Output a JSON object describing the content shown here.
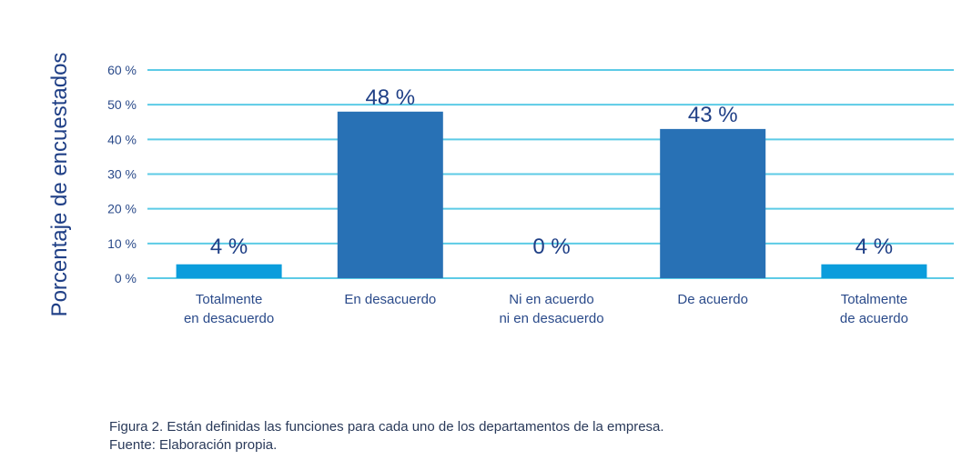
{
  "chart_data": {
    "type": "bar",
    "ylabel": "Porcentaje de encuestados",
    "xlabel": "",
    "ylim": [
      0,
      60
    ],
    "yticks": [
      0,
      10,
      20,
      30,
      40,
      50,
      60
    ],
    "ytick_labels": [
      "0 %",
      "10 %",
      "20 %",
      "30 %",
      "40 %",
      "50 %",
      "60 %"
    ],
    "grid": true,
    "categories": [
      [
        "Totalmente",
        "en desacuerdo"
      ],
      [
        "En desacuerdo"
      ],
      [
        "Ni en acuerdo",
        "ni en desacuerdo"
      ],
      [
        "De acuerdo"
      ],
      [
        "Totalmente",
        "de acuerdo"
      ]
    ],
    "values": [
      4,
      48,
      0,
      43,
      4
    ],
    "data_labels": [
      "4 %",
      "48 %",
      "0 %",
      "43 %",
      "4 %"
    ],
    "bar_colors": [
      "#0a9ddc",
      "#2871b5",
      "#2871b5",
      "#2871b5",
      "#0a9ddc"
    ],
    "grid_color": "#5ccbe6"
  },
  "caption": {
    "line1": "Figura 2. Están definidas las funciones para cada uno de los departamentos de la empresa.",
    "line2": "Fuente: Elaboración propia."
  }
}
